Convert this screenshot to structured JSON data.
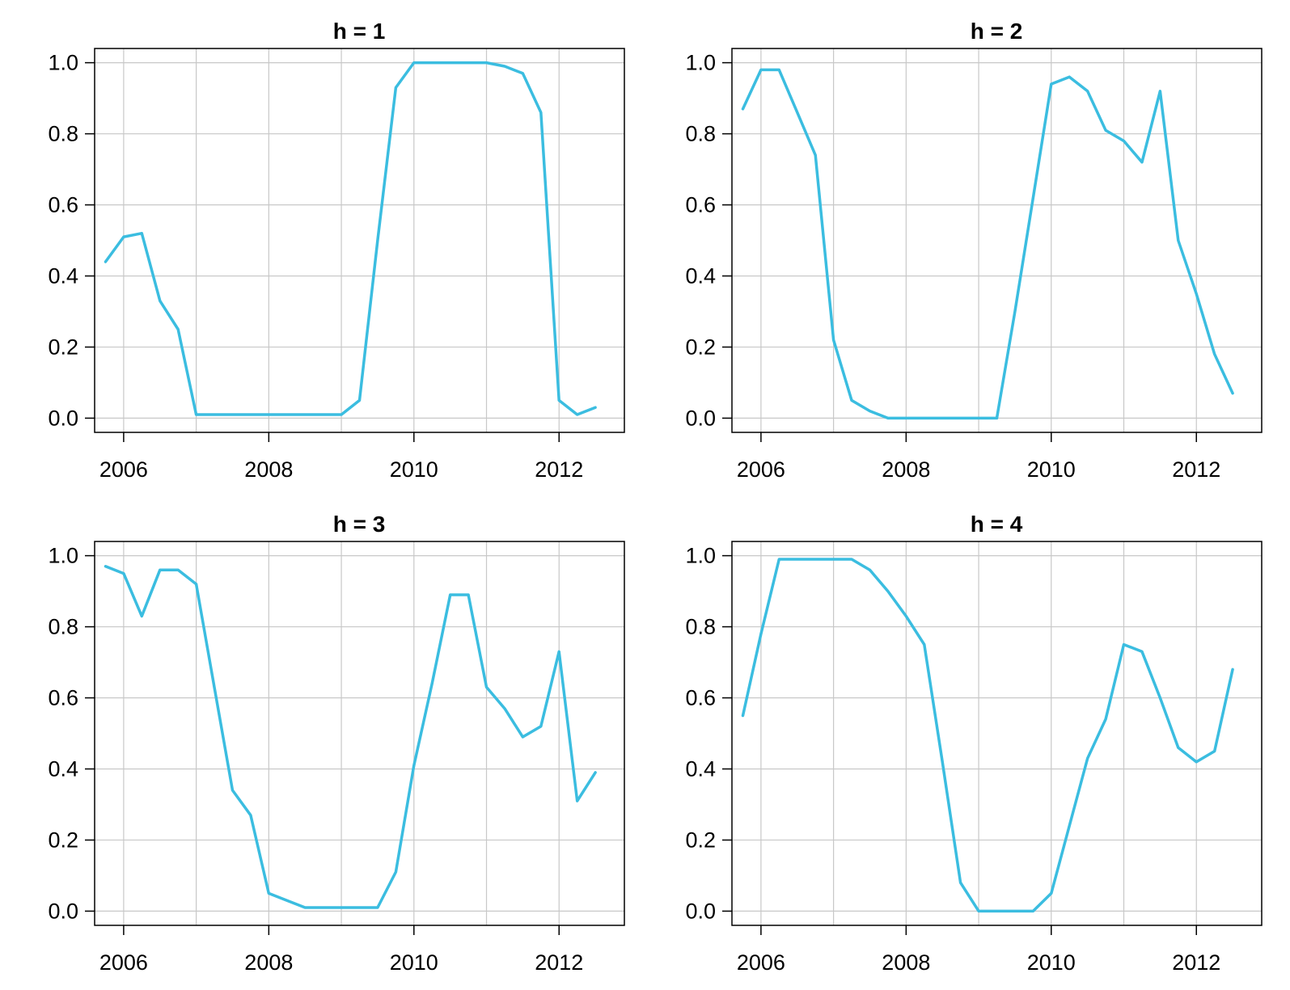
{
  "chart_data": [
    {
      "type": "line",
      "title": "h = 1",
      "xlabel": "",
      "ylabel": "",
      "xlim": [
        2005.6,
        2012.9
      ],
      "ylim": [
        -0.04,
        1.04
      ],
      "xticks": [
        2006,
        2008,
        2010,
        2012
      ],
      "yticks": [
        0.0,
        0.2,
        0.4,
        0.6,
        0.8,
        1.0
      ],
      "xtick_labels": [
        "2006",
        "2008",
        "2010",
        "2012"
      ],
      "ytick_labels": [
        "0.0",
        "0.2",
        "0.4",
        "0.6",
        "0.8",
        "1.0"
      ],
      "grid": true,
      "color": "#3bbde0",
      "series": [
        {
          "x": [
            2005.75,
            2006.0,
            2006.25,
            2006.5,
            2006.75,
            2007.0,
            2007.25,
            2007.5,
            2007.75,
            2008.0,
            2008.25,
            2008.5,
            2008.75,
            2009.0,
            2009.25,
            2009.5,
            2009.75,
            2010.0,
            2010.25,
            2010.5,
            2010.75,
            2011.0,
            2011.25,
            2011.5,
            2011.75,
            2012.0,
            2012.25,
            2012.5
          ],
          "y": [
            0.44,
            0.51,
            0.52,
            0.33,
            0.25,
            0.01,
            0.01,
            0.01,
            0.01,
            0.01,
            0.01,
            0.01,
            0.01,
            0.01,
            0.05,
            0.5,
            0.93,
            1.0,
            1.0,
            1.0,
            1.0,
            1.0,
            0.99,
            0.97,
            0.86,
            0.05,
            0.01,
            0.03
          ]
        }
      ]
    },
    {
      "type": "line",
      "title": "h = 2",
      "xlabel": "",
      "ylabel": "",
      "xlim": [
        2005.6,
        2012.9
      ],
      "ylim": [
        -0.04,
        1.04
      ],
      "xticks": [
        2006,
        2008,
        2010,
        2012
      ],
      "yticks": [
        0.0,
        0.2,
        0.4,
        0.6,
        0.8,
        1.0
      ],
      "xtick_labels": [
        "2006",
        "2008",
        "2010",
        "2012"
      ],
      "ytick_labels": [
        "0.0",
        "0.2",
        "0.4",
        "0.6",
        "0.8",
        "1.0"
      ],
      "grid": true,
      "color": "#3bbde0",
      "series": [
        {
          "x": [
            2005.75,
            2006.0,
            2006.25,
            2006.5,
            2006.75,
            2007.0,
            2007.25,
            2007.5,
            2007.75,
            2008.0,
            2008.25,
            2008.5,
            2008.75,
            2009.0,
            2009.25,
            2009.5,
            2009.75,
            2010.0,
            2010.25,
            2010.5,
            2010.75,
            2011.0,
            2011.25,
            2011.5,
            2011.75,
            2012.0,
            2012.25,
            2012.5
          ],
          "y": [
            0.87,
            0.98,
            0.98,
            0.86,
            0.74,
            0.22,
            0.05,
            0.02,
            0.0,
            0.0,
            0.0,
            0.0,
            0.0,
            0.0,
            0.0,
            0.3,
            0.62,
            0.94,
            0.96,
            0.92,
            0.81,
            0.78,
            0.72,
            0.92,
            0.5,
            0.35,
            0.18,
            0.07
          ]
        }
      ]
    },
    {
      "type": "line",
      "title": "h = 3",
      "xlabel": "",
      "ylabel": "",
      "xlim": [
        2005.6,
        2012.9
      ],
      "ylim": [
        -0.04,
        1.04
      ],
      "xticks": [
        2006,
        2008,
        2010,
        2012
      ],
      "yticks": [
        0.0,
        0.2,
        0.4,
        0.6,
        0.8,
        1.0
      ],
      "xtick_labels": [
        "2006",
        "2008",
        "2010",
        "2012"
      ],
      "ytick_labels": [
        "0.0",
        "0.2",
        "0.4",
        "0.6",
        "0.8",
        "1.0"
      ],
      "grid": true,
      "color": "#3bbde0",
      "series": [
        {
          "x": [
            2005.75,
            2006.0,
            2006.25,
            2006.5,
            2006.75,
            2007.0,
            2007.25,
            2007.5,
            2007.75,
            2008.0,
            2008.25,
            2008.5,
            2008.75,
            2009.0,
            2009.25,
            2009.5,
            2009.75,
            2010.0,
            2010.25,
            2010.5,
            2010.75,
            2011.0,
            2011.25,
            2011.5,
            2011.75,
            2012.0,
            2012.25,
            2012.5
          ],
          "y": [
            0.97,
            0.95,
            0.83,
            0.96,
            0.96,
            0.92,
            0.63,
            0.34,
            0.27,
            0.05,
            0.03,
            0.01,
            0.01,
            0.01,
            0.01,
            0.01,
            0.11,
            0.41,
            0.64,
            0.89,
            0.89,
            0.63,
            0.57,
            0.49,
            0.52,
            0.73,
            0.31,
            0.39
          ]
        }
      ]
    },
    {
      "type": "line",
      "title": "h = 4",
      "xlabel": "",
      "ylabel": "",
      "xlim": [
        2005.6,
        2012.9
      ],
      "ylim": [
        -0.04,
        1.04
      ],
      "xticks": [
        2006,
        2008,
        2010,
        2012
      ],
      "yticks": [
        0.0,
        0.2,
        0.4,
        0.6,
        0.8,
        1.0
      ],
      "xtick_labels": [
        "2006",
        "2008",
        "2010",
        "2012"
      ],
      "ytick_labels": [
        "0.0",
        "0.2",
        "0.4",
        "0.6",
        "0.8",
        "1.0"
      ],
      "grid": true,
      "color": "#3bbde0",
      "series": [
        {
          "x": [
            2005.75,
            2006.0,
            2006.25,
            2006.5,
            2006.75,
            2007.0,
            2007.25,
            2007.5,
            2007.75,
            2008.0,
            2008.25,
            2008.5,
            2008.75,
            2009.0,
            2009.25,
            2009.5,
            2009.75,
            2010.0,
            2010.25,
            2010.5,
            2010.75,
            2011.0,
            2011.25,
            2011.5,
            2011.75,
            2012.0,
            2012.25,
            2012.5
          ],
          "y": [
            0.55,
            0.78,
            0.99,
            0.99,
            0.99,
            0.99,
            0.99,
            0.96,
            0.9,
            0.83,
            0.75,
            0.42,
            0.08,
            0.0,
            0.0,
            0.0,
            0.0,
            0.05,
            0.24,
            0.43,
            0.54,
            0.75,
            0.73,
            0.6,
            0.46,
            0.42,
            0.45,
            0.68
          ]
        }
      ]
    }
  ]
}
